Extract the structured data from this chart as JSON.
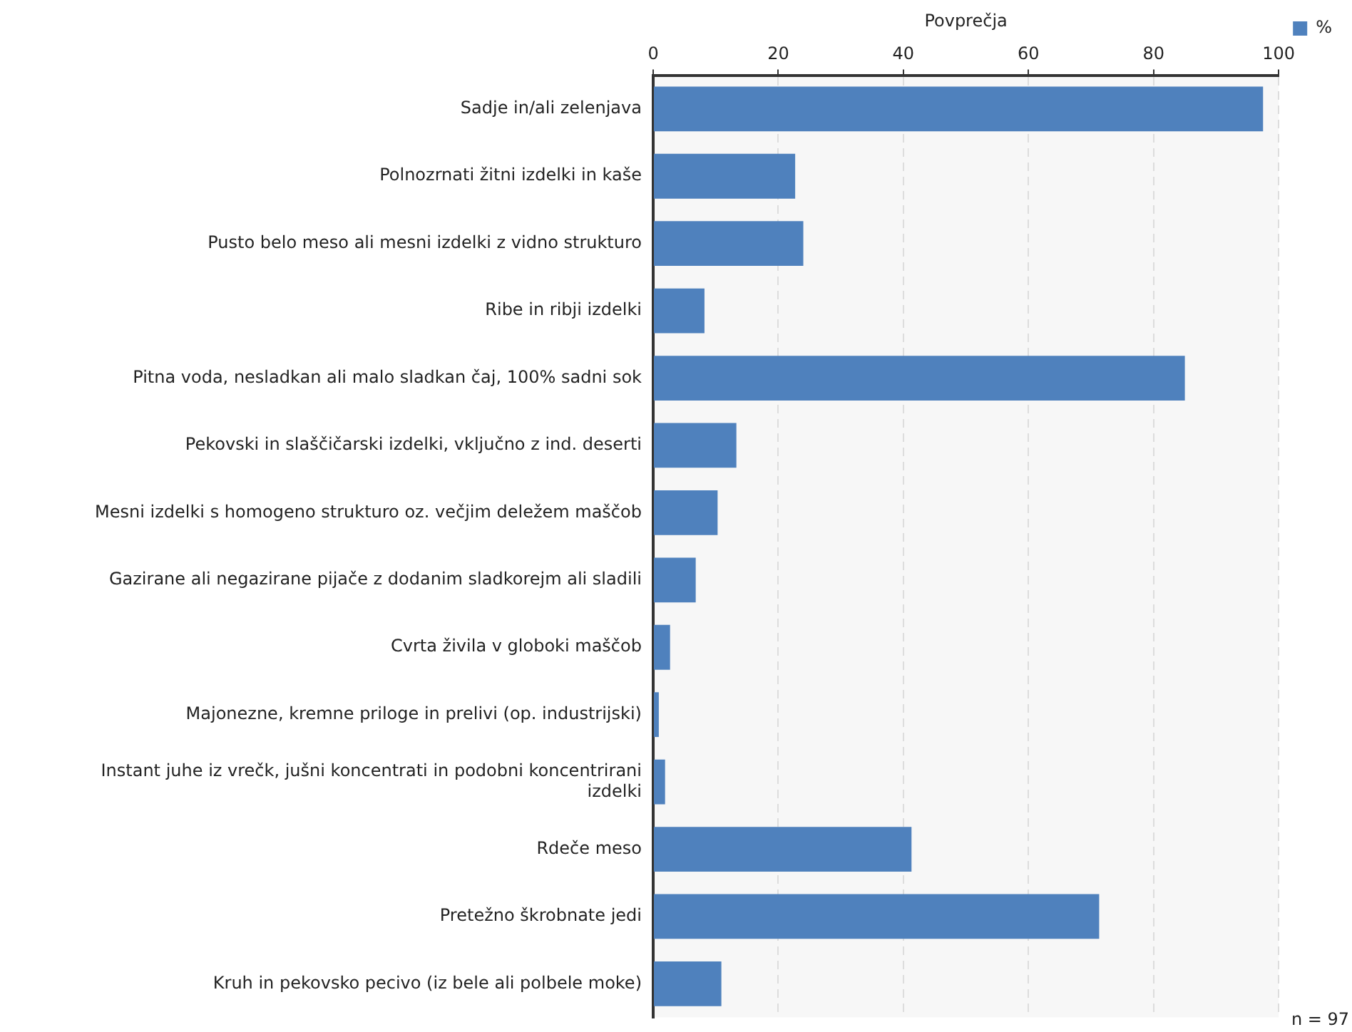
{
  "chart_data": {
    "type": "bar",
    "orientation": "horizontal",
    "xlabel": "Povprečja",
    "categories": [
      "Sadje in/ali zelenjava",
      "Polnozrnati žitni izdelki in kaše",
      "Pusto belo meso ali mesni izdelki z vidno strukturo",
      "Ribe in ribji izdelki",
      "Pitna voda, nesladkan ali malo sladkan čaj, 100% sadni sok",
      "Pekovski in slaščičarski izdelki, vključno z ind. deserti",
      "Mesni izdelki s homogeno strukturo oz. večjim deležem maščob",
      "Gazirane ali negazirane pijače z dodanim sladkorejm ali sladili",
      "Cvrta živila v globoki maščob",
      "Majonezne, kremne priloge in prelivi (op. industrijski)",
      "Instant juhe iz vrečk, jušni koncentrati in podobni koncentrirani izdelki",
      "Rdeče meso",
      "Pretežno škrobnate jedi",
      "Kruh in pekovsko pecivo (iz bele ali polbele moke)"
    ],
    "series": [
      {
        "name": "%",
        "color": "#4f81bd",
        "values": [
          97.5,
          22.7,
          24.0,
          8.2,
          85.0,
          13.3,
          10.3,
          6.8,
          2.7,
          0.9,
          1.9,
          41.3,
          71.3,
          10.9
        ]
      }
    ],
    "xlim": [
      0,
      100
    ],
    "xticks": [
      0,
      20,
      40,
      60,
      80,
      100
    ],
    "grid": true,
    "legend": "top right",
    "annotations": [
      "n = 97"
    ]
  }
}
